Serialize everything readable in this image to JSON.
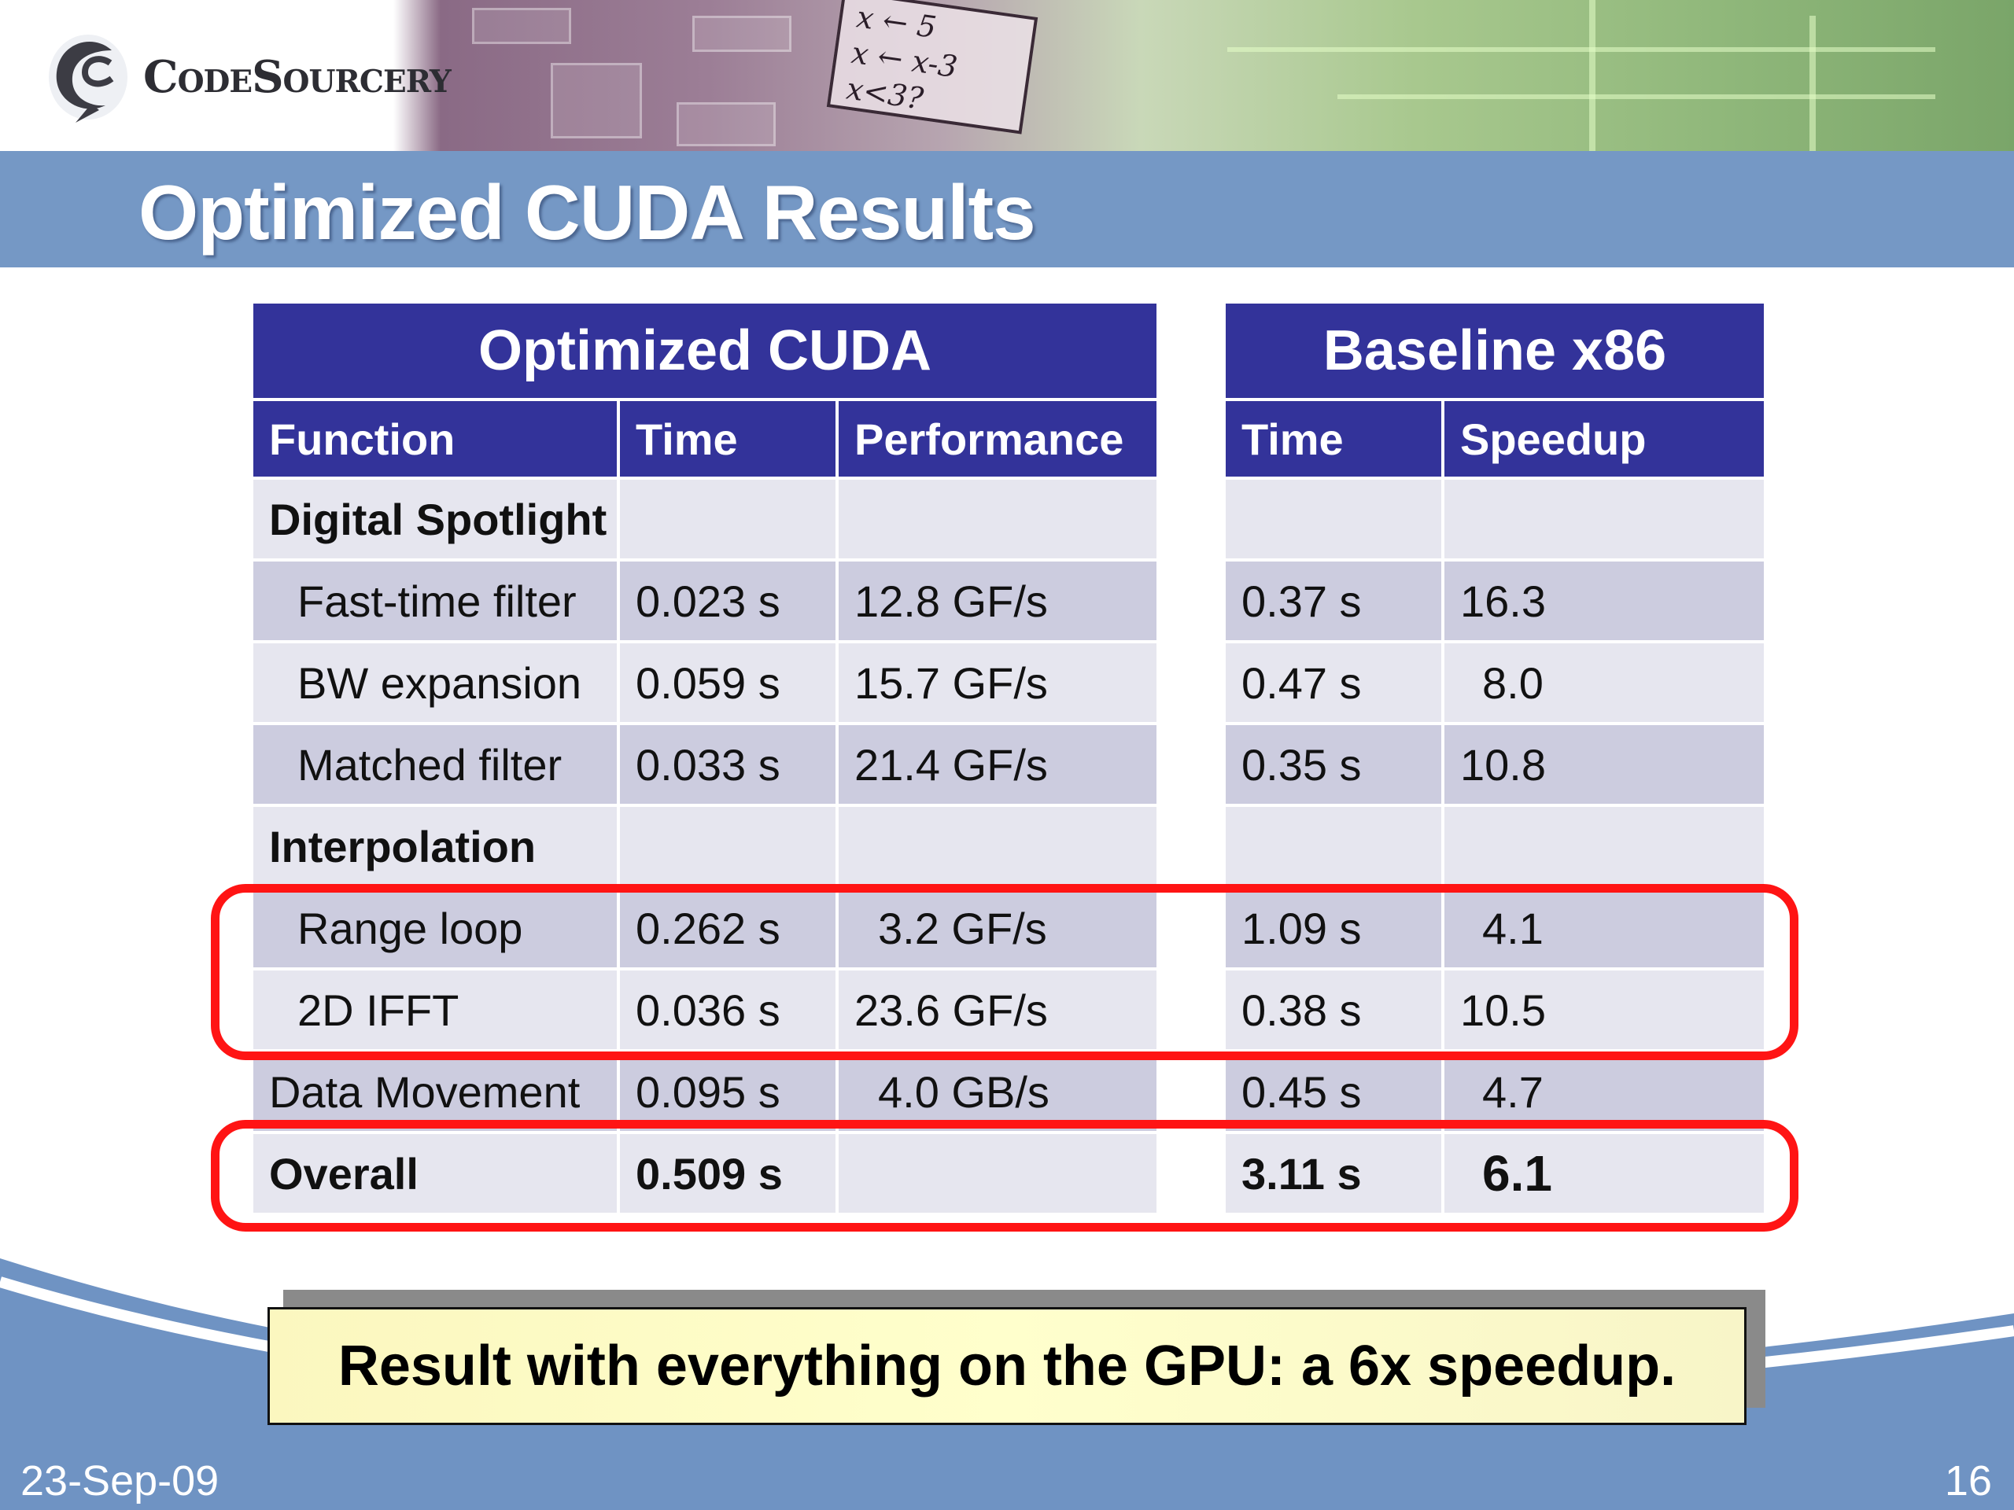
{
  "logo": {
    "text": "CodeSourcery"
  },
  "banner": {
    "code_lines": [
      "x ← 5",
      "x ← x-3",
      "x<3?"
    ]
  },
  "title": "Optimized CUDA Results",
  "cuda_table": {
    "group_header": "Optimized CUDA",
    "columns": [
      "Function",
      "Time",
      "Performance"
    ],
    "rows": [
      {
        "function": "Digital Spotlight",
        "time": "",
        "performance": ""
      },
      {
        "function": "Fast-time filter",
        "time": "0.023 s",
        "performance": "12.8 GF/s"
      },
      {
        "function": "BW expansion",
        "time": "0.059 s",
        "performance": "15.7 GF/s"
      },
      {
        "function": "Matched filter",
        "time": "0.033 s",
        "performance": "21.4 GF/s"
      },
      {
        "function": "Interpolation",
        "time": "",
        "performance": ""
      },
      {
        "function": "Range loop",
        "time": "0.262 s",
        "performance": "3.2 GF/s"
      },
      {
        "function": "2D IFFT",
        "time": "0.036 s",
        "performance": "23.6 GF/s"
      },
      {
        "function": "Data Movement",
        "time": "0.095 s",
        "performance": "4.0 GB/s"
      },
      {
        "function": "Overall",
        "time": "0.509 s",
        "performance": ""
      }
    ]
  },
  "x86_table": {
    "group_header": "Baseline x86",
    "columns": [
      "Time",
      "Speedup"
    ],
    "rows": [
      {
        "time": "",
        "speedup": ""
      },
      {
        "time": "0.37 s",
        "speedup": "16.3"
      },
      {
        "time": "0.47 s",
        "speedup": "8.0"
      },
      {
        "time": "0.35 s",
        "speedup": "10.8"
      },
      {
        "time": "",
        "speedup": ""
      },
      {
        "time": "1.09 s",
        "speedup": "4.1"
      },
      {
        "time": "0.38 s",
        "speedup": "10.5"
      },
      {
        "time": "0.45 s",
        "speedup": "4.7"
      },
      {
        "time": "3.11 s",
        "speedup": "6.1"
      }
    ]
  },
  "callout": "Result with everything on the GPU: a 6x speedup.",
  "footer": {
    "date": "23-Sep-09",
    "page": "16"
  },
  "colors": {
    "header_bg": "#33339a",
    "title_bar": "#7598c5",
    "row_light": "#e6e6ef",
    "row_dark": "#ccccdf",
    "highlight": "#ff1414",
    "callout_bg": "#ffffcc"
  }
}
